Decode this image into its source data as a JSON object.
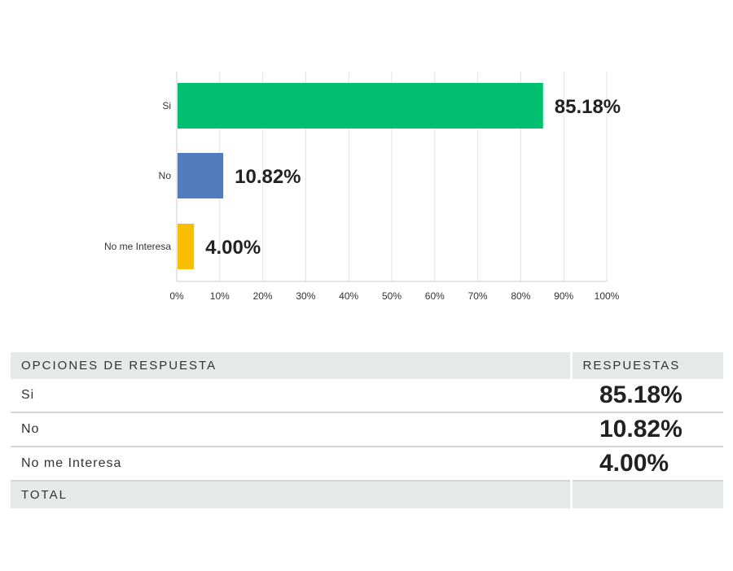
{
  "chart_data": {
    "type": "bar",
    "orientation": "horizontal",
    "categories": [
      "Si",
      "No",
      "No me Interesa"
    ],
    "values": [
      85.18,
      10.82,
      4.0
    ],
    "value_labels": [
      "85.18%",
      "10.82%",
      "4.00%"
    ],
    "colors": [
      "#00bf6f",
      "#507cbe",
      "#f9be00"
    ],
    "xlim": [
      0,
      100
    ],
    "xticks": [
      "0%",
      "10%",
      "20%",
      "30%",
      "40%",
      "50%",
      "60%",
      "70%",
      "80%",
      "90%",
      "100%"
    ],
    "title": "",
    "xlabel": "",
    "ylabel": "",
    "grid": true
  },
  "table": {
    "header_option": "OPCIONES DE RESPUESTA",
    "header_responses": "RESPUESTAS",
    "rows": [
      {
        "option": "Si",
        "percent": "85.18%"
      },
      {
        "option": "No",
        "percent": "10.82%"
      },
      {
        "option": "No me Interesa",
        "percent": "4.00%"
      }
    ],
    "total_label": "TOTAL",
    "total_value": ""
  }
}
